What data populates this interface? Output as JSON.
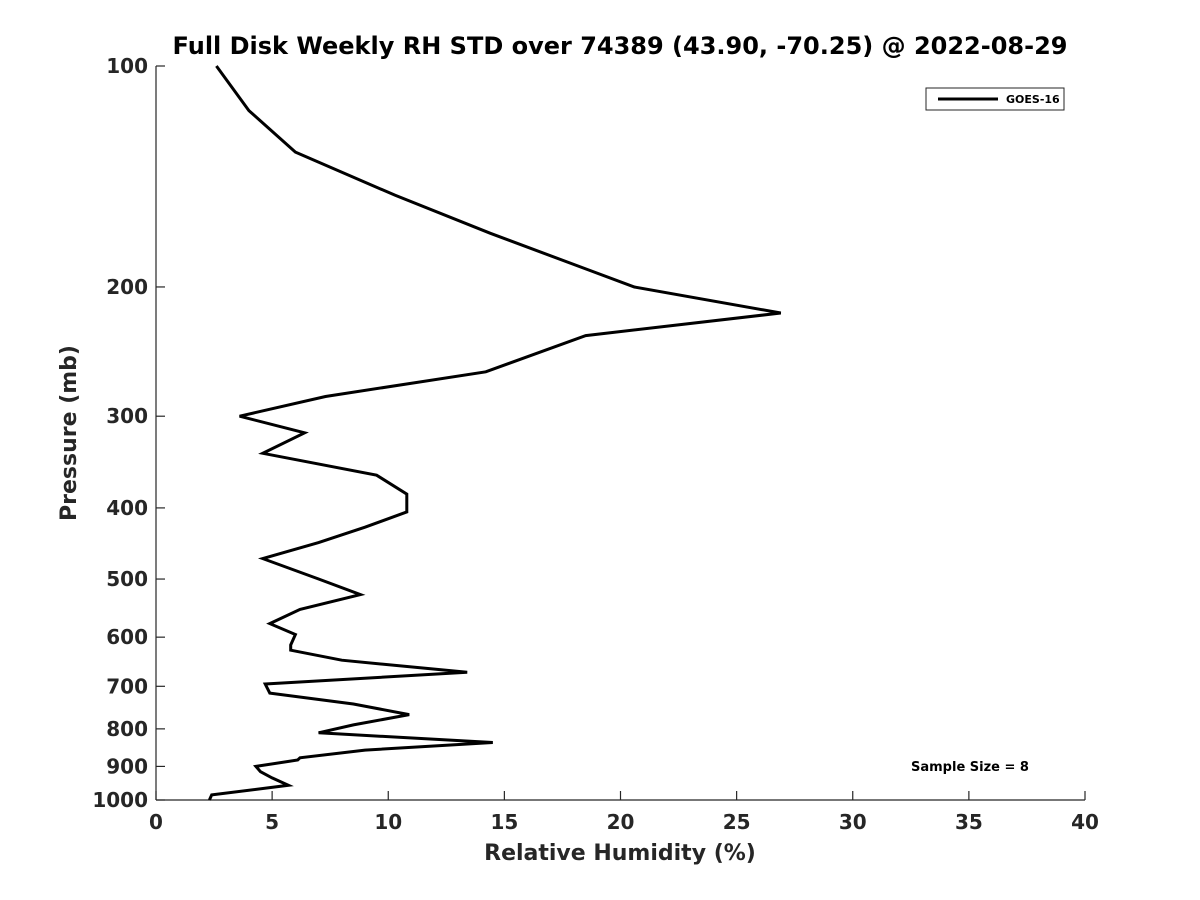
{
  "chart_data": {
    "type": "line",
    "title": "Full Disk Weekly RH STD over 74389 (43.90, -70.25) @ 2022-08-29",
    "xlabel": "Relative Humidity (%)",
    "ylabel": "Pressure (mb)",
    "xlim": [
      0,
      40
    ],
    "ylim": [
      100,
      1000
    ],
    "yscale": "log",
    "y_reversed": true,
    "xticks": [
      0,
      5,
      10,
      15,
      20,
      25,
      30,
      35,
      40
    ],
    "yticks": [
      100,
      200,
      300,
      400,
      500,
      600,
      700,
      800,
      900,
      1000
    ],
    "legend": {
      "position": "top-right",
      "entries": [
        "GOES-16"
      ]
    },
    "annotation": "Sample Size = 8",
    "series": [
      {
        "name": "GOES-16",
        "color": "#000000",
        "x": [
          2.6,
          4.0,
          6.0,
          10.3,
          14.4,
          18.5,
          20.6,
          26.9,
          18.5,
          14.2,
          7.3,
          3.6,
          6.4,
          4.6,
          9.5,
          10.8,
          10.8,
          9.0,
          7.0,
          4.6,
          7.0,
          8.8,
          6.2,
          4.9,
          6.0,
          5.8,
          5.8,
          8.0,
          13.4,
          4.7,
          4.9,
          8.5,
          10.9,
          8.5,
          7.0,
          14.5,
          9.0,
          6.2,
          6.1,
          4.3,
          4.5,
          5.0,
          5.7,
          2.4,
          2.3
        ],
        "y": [
          100,
          115,
          131,
          150,
          169,
          189,
          200,
          217,
          233,
          261,
          282,
          300,
          316,
          337,
          361,
          383,
          405,
          425,
          446,
          469,
          500,
          525,
          550,
          575,
          595,
          615,
          625,
          645,
          670,
          695,
          715,
          740,
          765,
          790,
          810,
          835,
          855,
          876,
          882,
          900,
          915,
          933,
          955,
          984,
          1000
        ]
      }
    ]
  }
}
